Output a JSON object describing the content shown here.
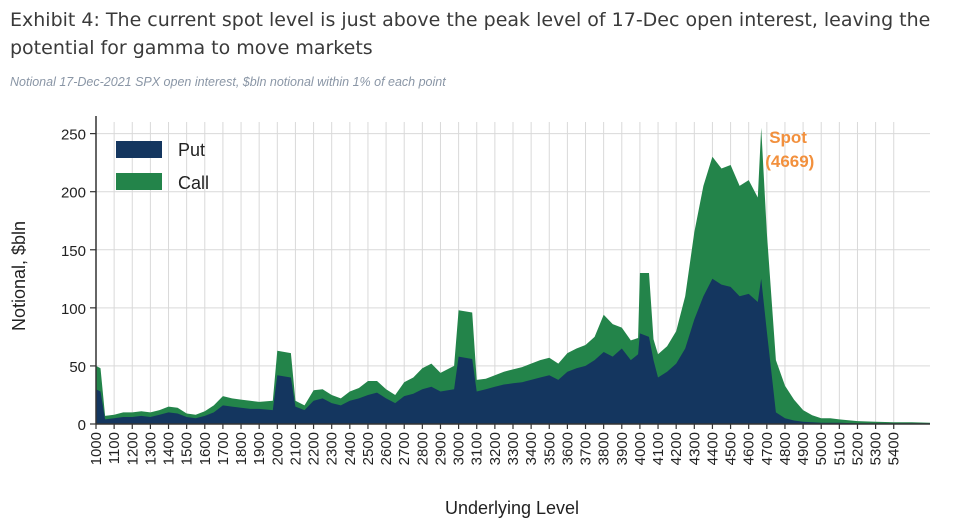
{
  "header": {
    "title": "Exhibit 4: The current spot level is just above the peak level of 17-Dec open interest, leaving the potential for gamma to move markets",
    "subtitle": "Notional 17-Dec-2021 SPX open interest, $bln notional within 1% of each point"
  },
  "chart_data": {
    "type": "area",
    "stacked": true,
    "xlabel": "Underlying Level",
    "ylabel": "Notional, $bln",
    "xlim": [
      1000,
      5600
    ],
    "ylim": [
      0,
      260
    ],
    "yticks": [
      0,
      50,
      100,
      150,
      200,
      250
    ],
    "xtick_labels": [
      "1000",
      "1100",
      "1200",
      "1300",
      "1400",
      "1500",
      "1600",
      "1700",
      "1800",
      "1900",
      "2000",
      "2100",
      "2200",
      "2300",
      "2400",
      "2500",
      "2600",
      "2700",
      "2800",
      "2900",
      "3000",
      "3100",
      "3200",
      "3300",
      "3400",
      "3500",
      "3600",
      "3700",
      "3800",
      "3900",
      "4000",
      "4100",
      "4200",
      "4300",
      "4400",
      "4500",
      "4600",
      "4700",
      "4800",
      "4900",
      "5000",
      "5100",
      "5200",
      "5300",
      "5400"
    ],
    "grid": true,
    "legend_position": "top-left",
    "colors": {
      "put": "#14365f",
      "call": "#23844a",
      "annotation": "#f2903d"
    },
    "x": [
      1000,
      1025,
      1050,
      1100,
      1150,
      1200,
      1250,
      1300,
      1350,
      1400,
      1450,
      1500,
      1550,
      1600,
      1650,
      1700,
      1750,
      1800,
      1850,
      1900,
      1975,
      2000,
      2075,
      2100,
      2150,
      2200,
      2250,
      2300,
      2350,
      2400,
      2450,
      2500,
      2550,
      2600,
      2650,
      2700,
      2750,
      2800,
      2850,
      2900,
      2975,
      3000,
      3075,
      3100,
      3150,
      3200,
      3250,
      3300,
      3350,
      3400,
      3450,
      3500,
      3550,
      3600,
      3650,
      3700,
      3750,
      3800,
      3850,
      3900,
      3950,
      3990,
      4000,
      4050,
      4075,
      4100,
      4150,
      4200,
      4250,
      4300,
      4350,
      4400,
      4450,
      4500,
      4550,
      4600,
      4650,
      4669,
      4700,
      4750,
      4800,
      4850,
      4900,
      4950,
      5000,
      5050,
      5100,
      5200,
      5300,
      5400,
      5500,
      5600
    ],
    "series": [
      {
        "name": "Put",
        "values": [
          30,
          28,
          4,
          5,
          6,
          6,
          7,
          6,
          8,
          10,
          9,
          6,
          5,
          7,
          10,
          16,
          15,
          14,
          13,
          13,
          12,
          42,
          40,
          15,
          12,
          20,
          22,
          18,
          16,
          20,
          22,
          25,
          27,
          22,
          18,
          24,
          26,
          30,
          32,
          28,
          30,
          58,
          56,
          28,
          30,
          32,
          34,
          35,
          36,
          38,
          40,
          42,
          38,
          45,
          48,
          50,
          55,
          62,
          58,
          65,
          55,
          60,
          78,
          75,
          55,
          40,
          45,
          52,
          65,
          90,
          110,
          125,
          120,
          118,
          110,
          112,
          105,
          125,
          80,
          10,
          5,
          3,
          2,
          1.5,
          1,
          1,
          1,
          0.5,
          0.5,
          0.5,
          0.5,
          0.5
        ]
      },
      {
        "name": "Call",
        "values": [
          20,
          20,
          3,
          3,
          4,
          4,
          4,
          4,
          4,
          5,
          5,
          3,
          3,
          4,
          6,
          8,
          7,
          7,
          7,
          6,
          8,
          21,
          21,
          5,
          4,
          9,
          8,
          7,
          6,
          8,
          9,
          12,
          10,
          8,
          7,
          12,
          14,
          18,
          20,
          16,
          20,
          40,
          40,
          10,
          9,
          10,
          11,
          12,
          13,
          14,
          15,
          15,
          14,
          16,
          17,
          18,
          20,
          32,
          28,
          18,
          17,
          14,
          52,
          55,
          18,
          20,
          22,
          28,
          45,
          75,
          95,
          105,
          100,
          105,
          95,
          98,
          90,
          130,
          85,
          45,
          28,
          18,
          10,
          6,
          4,
          4,
          3,
          2,
          1.5,
          1,
          1,
          0.5
        ]
      }
    ],
    "annotation": {
      "text_line1": "Spot",
      "text_line2": "(4669)",
      "x": 4669
    }
  }
}
